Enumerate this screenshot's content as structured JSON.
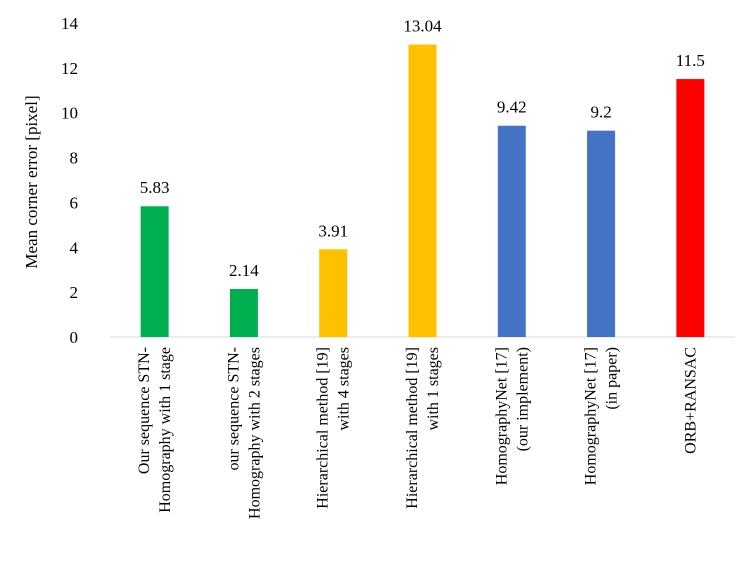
{
  "chart_data": {
    "type": "bar",
    "title": "",
    "xlabel": "",
    "ylabel": "Mean corner error [pixel]",
    "ylim": [
      0,
      14
    ],
    "yticks": [
      0,
      2,
      4,
      6,
      8,
      10,
      12,
      14
    ],
    "grid": false,
    "categories": [
      [
        "Our sequence STN-",
        "Homography with 1 stage"
      ],
      [
        "our sequence STN-",
        "Homography with 2 stages"
      ],
      [
        "Hierarchical method [19]",
        "with 4 stages"
      ],
      [
        "Hierarchical method [19]",
        "with 1 stages"
      ],
      [
        "HomographyNet [17]",
        "(our implement)"
      ],
      [
        "HomographyNet [17]",
        "(in paper)"
      ],
      [
        "ORB+RANSAC"
      ]
    ],
    "values": [
      5.83,
      2.14,
      3.91,
      13.04,
      9.42,
      9.2,
      11.5
    ],
    "data_labels": [
      "5.83",
      "2.14",
      "3.91",
      "13.04",
      "9.42",
      "9.2",
      "11.5"
    ],
    "colors": [
      "#00b050",
      "#00b050",
      "#ffc000",
      "#ffc000",
      "#4472c4",
      "#4472c4",
      "#ff0000"
    ],
    "axis_color": "#d9d9d9"
  }
}
